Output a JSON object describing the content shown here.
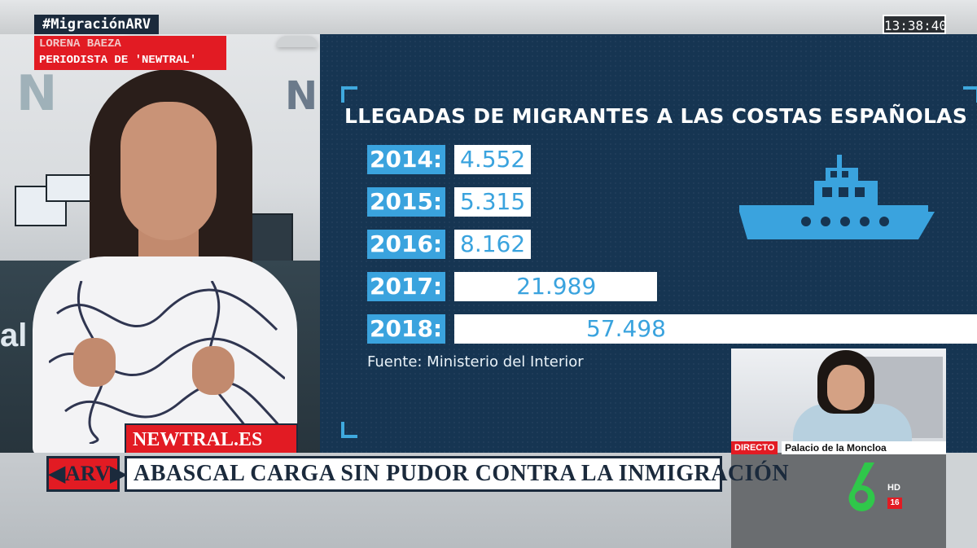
{
  "broadcast": {
    "hashtag": "#MigraciónARV",
    "reporter_name": "LORENA BAEZA",
    "reporter_role": "PERIODISTA DE 'NEWTRAL'",
    "clock": "13:38:40",
    "site_tag": "NEWTRAL.ES",
    "show_logo": "ARV",
    "headline": "ABASCAL CARGA SIN PUDOR CONTRA LA INMIGRACIÓN",
    "inset_live_label": "DIRECTO",
    "inset_location": "Palacio de la Moncloa",
    "channel_hd": "HD",
    "age_rating": "16"
  },
  "chart_data": {
    "type": "bar",
    "orientation": "horizontal",
    "title": "LLEGADAS DE MIGRANTES A LAS COSTAS ESPAÑOLAS",
    "categories": [
      "2014:",
      "2015:",
      "2016:",
      "2017:",
      "2018:"
    ],
    "values": [
      4552,
      5315,
      8162,
      21989,
      57498
    ],
    "value_labels": [
      "4.552",
      "5.315",
      "8.162",
      "21.989",
      "57.498"
    ],
    "source": "Fuente: Ministerio del Interior",
    "colors": {
      "background": "#163552",
      "year_box": "#3aa3de",
      "bar": "#ffffff",
      "value_text": "#3aa3de"
    },
    "icon": "ship-icon",
    "legend": "none",
    "grid": false
  }
}
